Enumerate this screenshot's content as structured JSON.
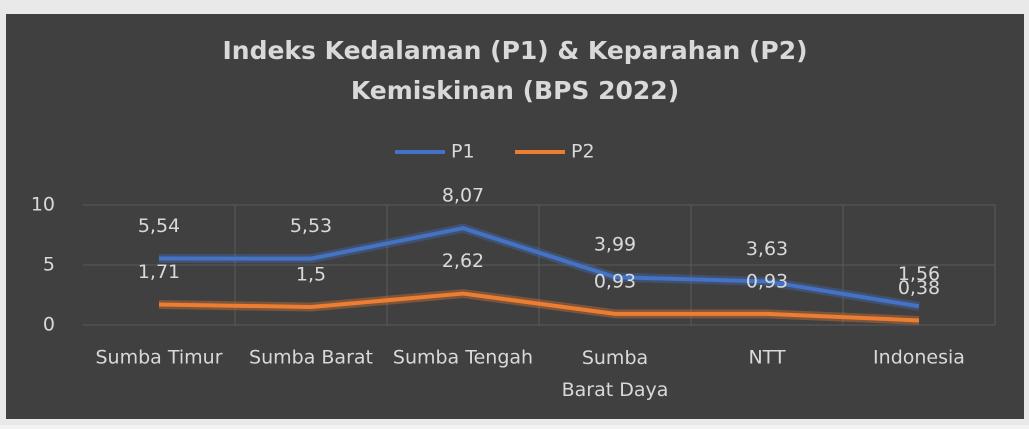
{
  "chart_data": {
    "type": "line",
    "title": [
      "Indeks Kedalaman (P1) & Keparahan (P2)",
      "Kemiskinan (BPS 2022)"
    ],
    "categories": [
      "Sumba Timur",
      "Sumba Barat",
      "Sumba Tengah",
      "Sumba Barat Daya",
      "NTT",
      "Indonesia"
    ],
    "series": [
      {
        "name": "P1",
        "color": "#4472c4",
        "values": [
          5.54,
          5.53,
          8.07,
          3.99,
          3.63,
          1.56
        ],
        "value_labels": [
          "5,54",
          "5,53",
          "8,07",
          "3,99",
          "3,63",
          "1,56"
        ]
      },
      {
        "name": "P2",
        "color": "#ed7d31",
        "values": [
          1.71,
          1.5,
          2.62,
          0.93,
          0.93,
          0.38
        ],
        "value_labels": [
          "1,71",
          "1,5",
          "2,62",
          "0,93",
          "0,93",
          "0,38"
        ]
      }
    ],
    "ylim": [
      0,
      10
    ],
    "yticks": [
      0,
      5,
      10
    ],
    "grid": true,
    "legend": "top"
  }
}
